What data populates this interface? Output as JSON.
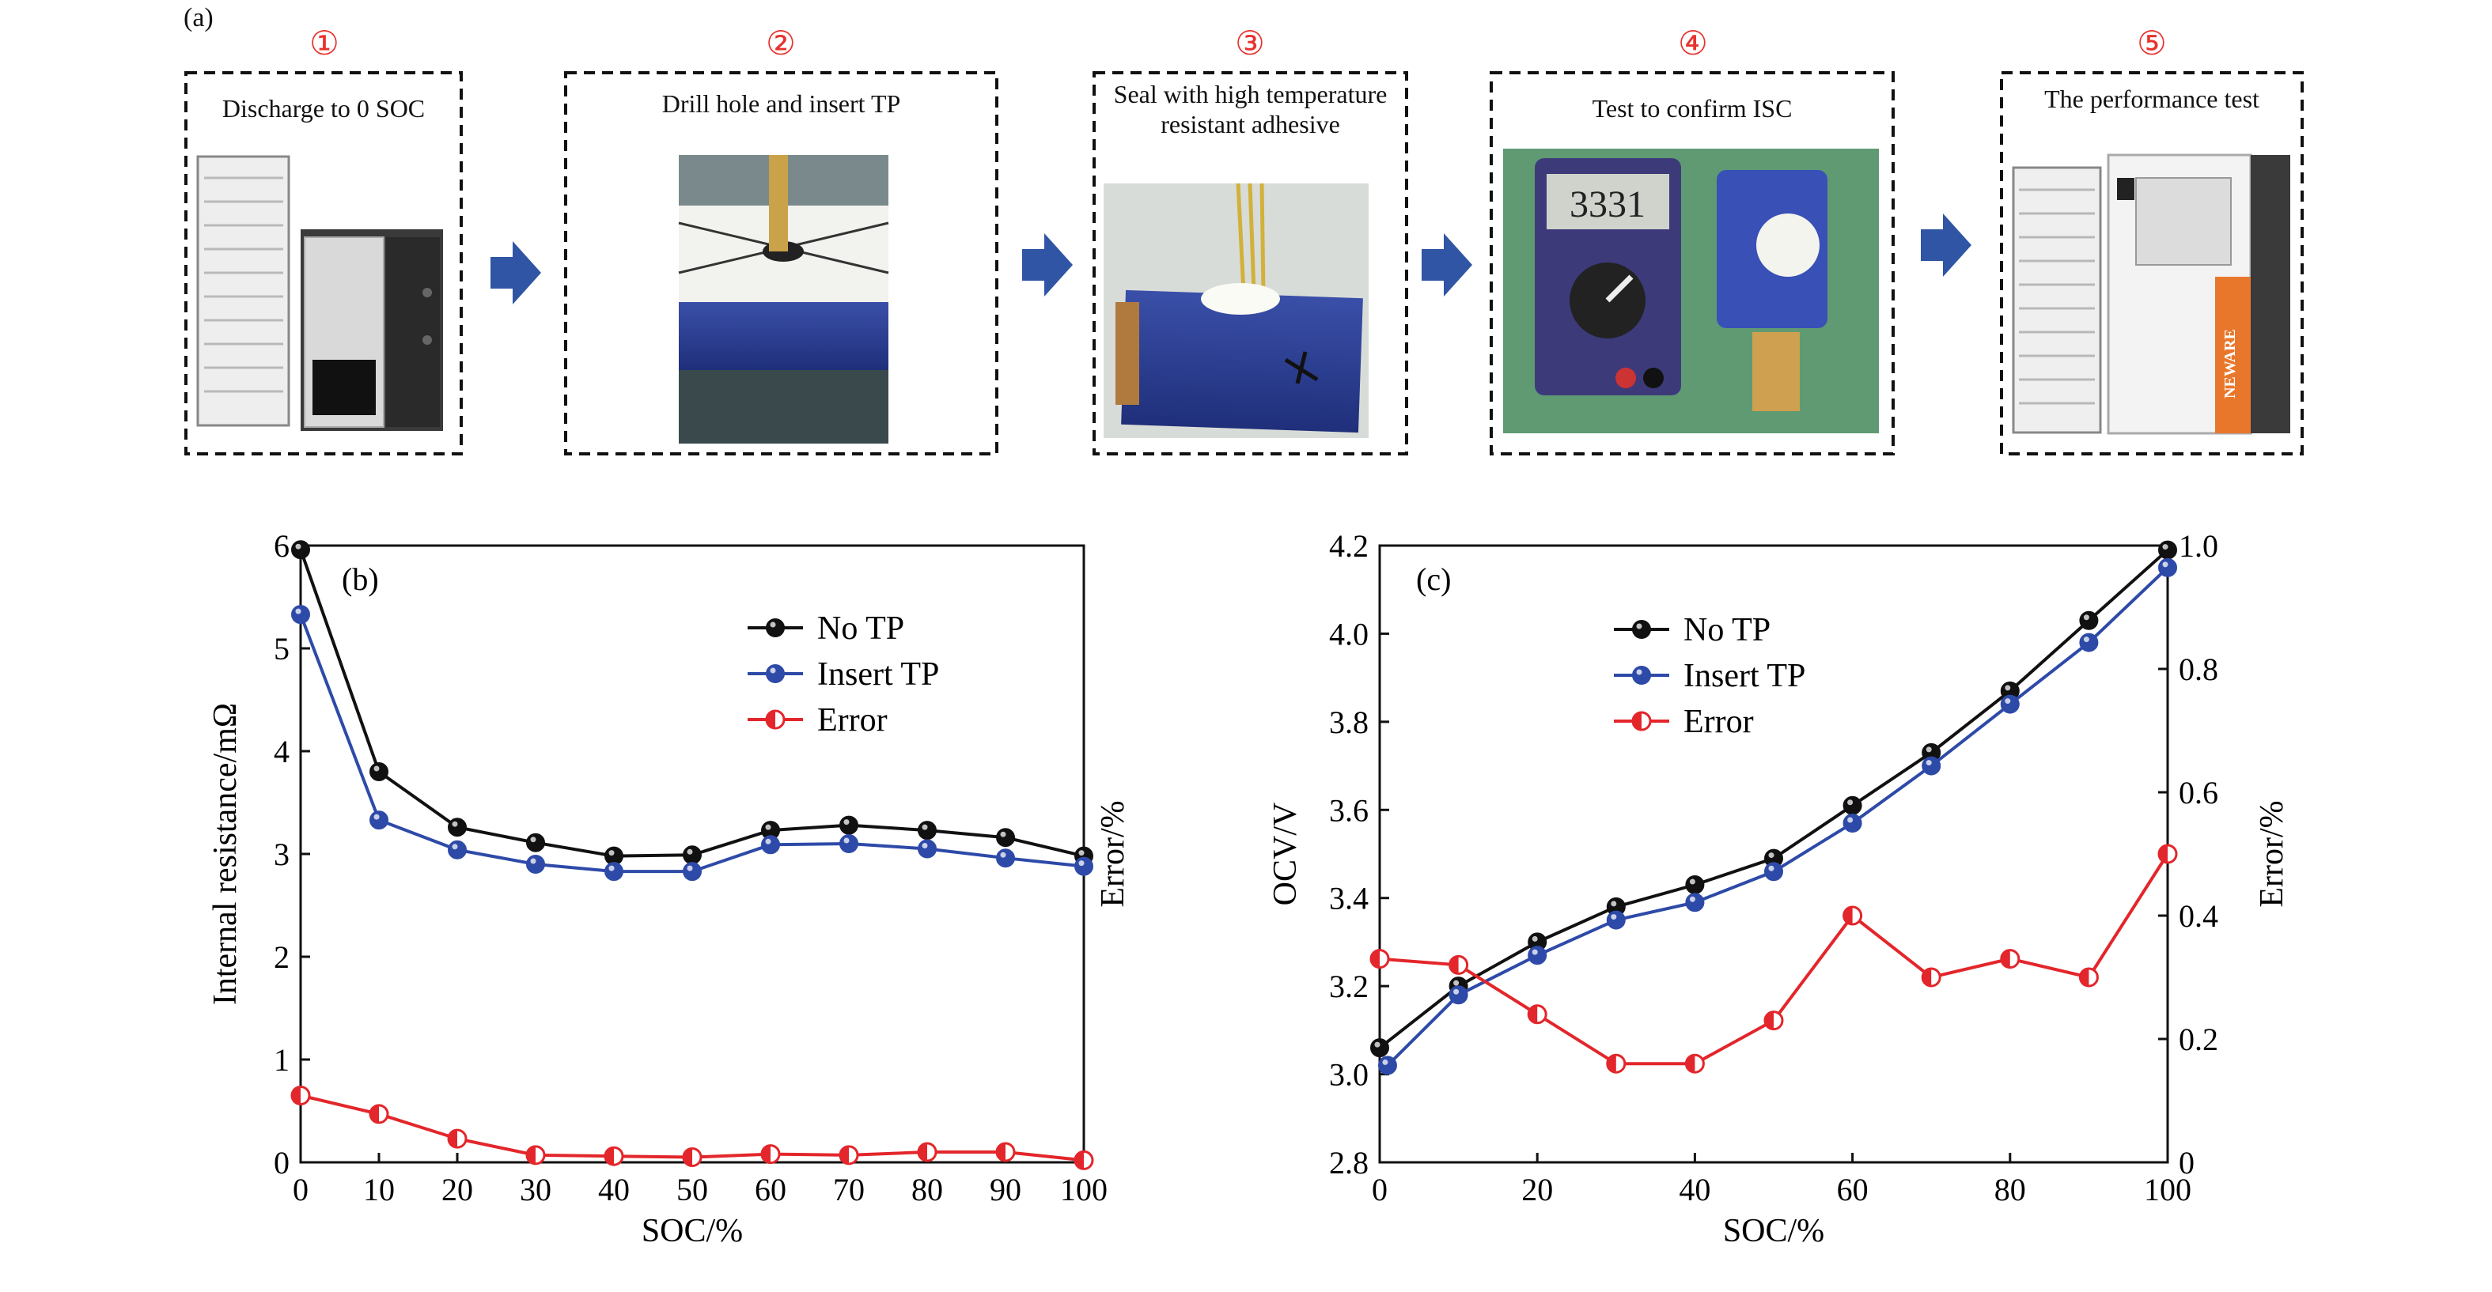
{
  "panel_a": {
    "tag": "(a)",
    "steps": [
      {
        "num": "①",
        "label": "Discharge to 0 SOC",
        "photo": "battery-tester-cabinet"
      },
      {
        "num": "②",
        "label": "Drill hole and insert TP",
        "photo": "drilled-cell-with-probe"
      },
      {
        "num": "③",
        "label": "Seal with high temperature resistant adhesive",
        "photo": "sealed-cell"
      },
      {
        "num": "④",
        "label": "Test to confirm ISC",
        "photo": "multimeter-test"
      },
      {
        "num": "⑤",
        "label": "The performance test",
        "photo": "neware-test-chamber"
      }
    ],
    "multimeter_reading": "3331",
    "chamber_brand": "NEWARE",
    "colors": {
      "step_number": "#e8322e",
      "arrow": "#2f55a4"
    }
  },
  "chart_data": [
    {
      "panel": "(b)",
      "type": "line",
      "xlabel": "SOC/%",
      "ylabel": "Internal resistance/mΩ",
      "y2label": "Error/%",
      "xlim": [
        0,
        100
      ],
      "ylim": [
        0,
        6
      ],
      "xticks": [
        "0",
        "10",
        "20",
        "30",
        "40",
        "50",
        "60",
        "70",
        "80",
        "90",
        "100"
      ],
      "yticks": [
        "0",
        "1",
        "2",
        "3",
        "4",
        "5",
        "6"
      ],
      "legend_position": "top-right",
      "series": [
        {
          "name": "No TP",
          "axis": "left",
          "color": "#111111",
          "x": [
            0,
            10,
            20,
            30,
            40,
            50,
            60,
            70,
            80,
            90,
            100
          ],
          "values": [
            5.96,
            3.8,
            3.26,
            3.11,
            2.98,
            2.99,
            3.23,
            3.28,
            3.23,
            3.16,
            2.98
          ]
        },
        {
          "name": "Insert TP",
          "axis": "left",
          "color": "#2e4aa8",
          "x": [
            0,
            10,
            20,
            30,
            40,
            50,
            60,
            70,
            80,
            90,
            100
          ],
          "values": [
            5.33,
            3.33,
            3.04,
            2.9,
            2.83,
            2.83,
            3.09,
            3.1,
            3.05,
            2.96,
            2.88
          ]
        },
        {
          "name": "Error",
          "axis": "left",
          "color": "#e3262b",
          "half_filled": true,
          "x": [
            0,
            10,
            20,
            30,
            40,
            50,
            60,
            70,
            80,
            90,
            100
          ],
          "values": [
            0.65,
            0.47,
            0.23,
            0.07,
            0.06,
            0.05,
            0.08,
            0.07,
            0.1,
            0.1,
            0.02
          ]
        }
      ]
    },
    {
      "panel": "(c)",
      "type": "line",
      "xlabel": "SOC/%",
      "ylabel": "OCV/V",
      "y2label": "Error/%",
      "xlim": [
        0,
        100
      ],
      "ylim": [
        2.8,
        4.2
      ],
      "y2lim": [
        0,
        1.0
      ],
      "xticks": [
        "0",
        "20",
        "40",
        "60",
        "80",
        "100"
      ],
      "yticks": [
        "2.8",
        "3.0",
        "3.2",
        "3.4",
        "3.6",
        "3.8",
        "4.0",
        "4.2"
      ],
      "y2ticks": [
        "0",
        "0.2",
        "0.4",
        "0.6",
        "0.8",
        "1.0"
      ],
      "legend_position": "top-left",
      "series": [
        {
          "name": "No TP",
          "axis": "left",
          "color": "#111111",
          "x": [
            0,
            10,
            20,
            30,
            40,
            50,
            60,
            70,
            80,
            90,
            100
          ],
          "values": [
            3.06,
            3.2,
            3.3,
            3.38,
            3.43,
            3.49,
            3.61,
            3.73,
            3.87,
            4.03,
            4.19
          ]
        },
        {
          "name": "Insert TP",
          "axis": "left",
          "color": "#2e4aa8",
          "x": [
            1,
            10,
            20,
            30,
            40,
            50,
            60,
            70,
            80,
            90,
            100
          ],
          "values": [
            3.02,
            3.18,
            3.27,
            3.35,
            3.39,
            3.46,
            3.57,
            3.7,
            3.84,
            3.98,
            4.15
          ]
        },
        {
          "name": "Error",
          "axis": "right",
          "color": "#e3262b",
          "half_filled": true,
          "x": [
            0,
            10,
            20,
            30,
            40,
            50,
            60,
            70,
            80,
            90,
            100
          ],
          "values": [
            0.33,
            0.32,
            0.24,
            0.16,
            0.16,
            0.23,
            0.4,
            0.3,
            0.33,
            0.3,
            0.5
          ]
        }
      ]
    }
  ]
}
